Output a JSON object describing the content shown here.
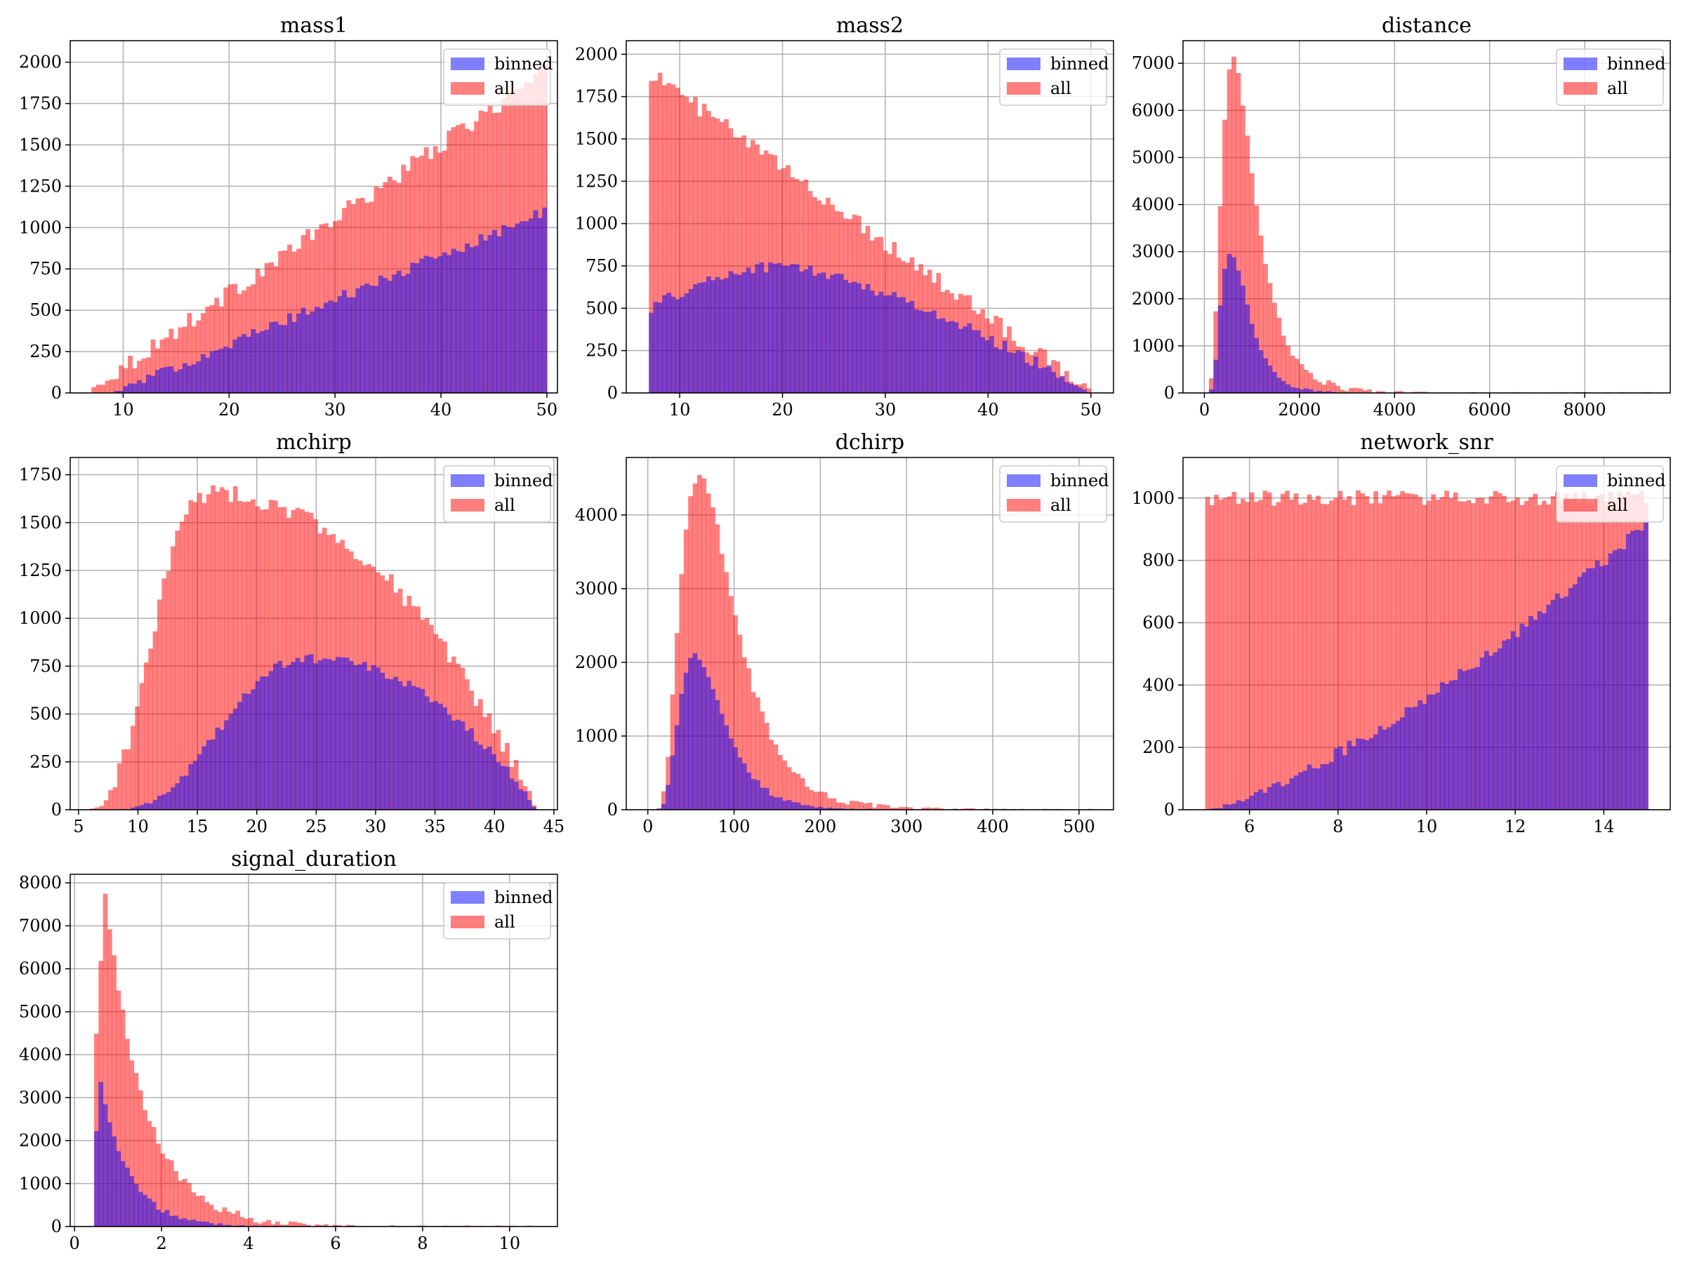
{
  "figure": {
    "colors": {
      "all": "#ff0000",
      "binned": "#0000ff",
      "alpha": 0.5
    }
  },
  "chart_data": [
    {
      "type": "bar",
      "title": "mass1",
      "legend": {
        "placement": "top-right",
        "entries": [
          "binned",
          "all"
        ]
      },
      "grid": true,
      "xlim": [
        5,
        51
      ],
      "ylim": [
        0,
        2130
      ],
      "xticks": [
        10,
        20,
        30,
        40,
        50
      ],
      "yticks": [
        0,
        250,
        500,
        750,
        1000,
        1250,
        1500,
        1750,
        2000
      ],
      "bins": {
        "start": 7.0,
        "end": 50.0,
        "count": 100
      },
      "series": [
        {
          "name": "all",
          "color": "#ff0000",
          "shape": "linear",
          "params": {
            "x0": 7.0,
            "y0": 20,
            "x1": 50.0,
            "y1": 1950,
            "noise": 55
          }
        },
        {
          "name": "binned",
          "color": "#0000ff",
          "shape": "linear",
          "params": {
            "x0": 9.0,
            "y0": 0,
            "x1": 50.0,
            "y1": 1100,
            "noise": 35
          }
        }
      ]
    },
    {
      "type": "bar",
      "title": "mass2",
      "legend": {
        "placement": "top-right",
        "entries": [
          "binned",
          "all"
        ]
      },
      "grid": true,
      "xlim": [
        4.8,
        52.2
      ],
      "ylim": [
        0,
        2080
      ],
      "xticks": [
        10,
        20,
        30,
        40,
        50
      ],
      "yticks": [
        0,
        250,
        500,
        750,
        1000,
        1250,
        1500,
        1750,
        2000
      ],
      "bins": {
        "start": 7.0,
        "end": 50.0,
        "count": 100
      },
      "series": [
        {
          "name": "all",
          "color": "#ff0000",
          "shape": "linear",
          "params": {
            "x0": 7.0,
            "y0": 1900,
            "x1": 50.0,
            "y1": 10,
            "noise": 50
          }
        },
        {
          "name": "binned",
          "color": "#0000ff",
          "shape": "plateau",
          "params": {
            "x0": 7.0,
            "y0": 500,
            "xpk": 20.0,
            "ypk": 750,
            "x1": 50.0,
            "y1": 0,
            "noise": 35
          }
        }
      ]
    },
    {
      "type": "bar",
      "title": "distance",
      "legend": {
        "placement": "top-right",
        "entries": [
          "binned",
          "all"
        ]
      },
      "grid": true,
      "xlim": [
        -450,
        9800
      ],
      "ylim": [
        0,
        7480
      ],
      "xticks": [
        0,
        2000,
        4000,
        6000,
        8000
      ],
      "yticks": [
        0,
        1000,
        2000,
        3000,
        4000,
        5000,
        6000,
        7000
      ],
      "bins": {
        "start": 0,
        "end": 9500,
        "count": 100
      },
      "series": [
        {
          "name": "all",
          "color": "#ff0000",
          "shape": "lognormal",
          "params": {
            "peak": 7100,
            "mode": 600,
            "sigma": 0.55,
            "noise": 90
          }
        },
        {
          "name": "binned",
          "color": "#0000ff",
          "shape": "lognormal",
          "params": {
            "peak": 3000,
            "mode": 550,
            "sigma": 0.5,
            "noise": 50
          }
        }
      ]
    },
    {
      "type": "bar",
      "title": "mchirp",
      "legend": {
        "placement": "top-right",
        "entries": [
          "binned",
          "all"
        ]
      },
      "grid": true,
      "xlim": [
        4.3,
        45.3
      ],
      "ylim": [
        0,
        1840
      ],
      "xticks": [
        5,
        10,
        15,
        20,
        25,
        30,
        35,
        40,
        45
      ],
      "yticks": [
        0,
        250,
        500,
        750,
        1000,
        1250,
        1500,
        1750
      ],
      "bins": {
        "start": 6.0,
        "end": 43.5,
        "count": 100
      },
      "series": [
        {
          "name": "all",
          "color": "#ff0000",
          "shape": "hump",
          "params": {
            "x0": 6.0,
            "x1": 43.5,
            "xpk": 15.5,
            "ypk": 1650,
            "noise": 50
          }
        },
        {
          "name": "binned",
          "color": "#0000ff",
          "shape": "hump",
          "params": {
            "x0": 8.5,
            "x1": 43.5,
            "xpk": 24.0,
            "ypk": 790,
            "noise": 25
          }
        }
      ]
    },
    {
      "type": "bar",
      "title": "dchirp",
      "legend": {
        "placement": "top-right",
        "entries": [
          "binned",
          "all"
        ]
      },
      "grid": true,
      "xlim": [
        -25,
        540
      ],
      "ylim": [
        0,
        4780
      ],
      "xticks": [
        0,
        100,
        200,
        300,
        400,
        500
      ],
      "yticks": [
        0,
        1000,
        2000,
        3000,
        4000
      ],
      "bins": {
        "start": 0,
        "end": 520,
        "count": 100
      },
      "series": [
        {
          "name": "all",
          "color": "#ff0000",
          "shape": "lognormal",
          "params": {
            "peak": 4550,
            "mode": 60,
            "sigma": 0.5,
            "noise": 60
          }
        },
        {
          "name": "binned",
          "color": "#0000ff",
          "shape": "lognormal",
          "params": {
            "peak": 2100,
            "mode": 55,
            "sigma": 0.45,
            "noise": 35
          }
        }
      ]
    },
    {
      "type": "bar",
      "title": "network_snr",
      "legend": {
        "placement": "top-right",
        "entries": [
          "binned",
          "all"
        ]
      },
      "grid": true,
      "xlim": [
        4.5,
        15.5
      ],
      "ylim": [
        0,
        1130
      ],
      "xticks": [
        6,
        8,
        10,
        12,
        14
      ],
      "yticks": [
        0,
        200,
        400,
        600,
        800,
        1000
      ],
      "bins": {
        "start": 5.0,
        "end": 15.0,
        "count": 100
      },
      "series": [
        {
          "name": "all",
          "color": "#ff0000",
          "shape": "flat",
          "params": {
            "level": 1000,
            "noise": 25
          }
        },
        {
          "name": "binned",
          "color": "#0000ff",
          "shape": "rise",
          "params": {
            "x0": 5.0,
            "x1": 15.0,
            "y1": 920,
            "noise": 20
          }
        }
      ]
    },
    {
      "type": "bar",
      "title": "signal_duration",
      "legend": {
        "placement": "top-right",
        "entries": [
          "binned",
          "all"
        ]
      },
      "grid": true,
      "xlim": [
        -0.1,
        11.1
      ],
      "ylim": [
        0,
        8200
      ],
      "xticks": [
        0,
        2,
        4,
        6,
        8,
        10
      ],
      "yticks": [
        0,
        1000,
        2000,
        3000,
        4000,
        5000,
        6000,
        7000,
        8000
      ],
      "bins": {
        "start": 0.45,
        "end": 10.6,
        "count": 100
      },
      "series": [
        {
          "name": "all",
          "color": "#ff0000",
          "shape": "decay",
          "params": {
            "x0": 0.45,
            "xpk": 0.7,
            "ypk": 7800,
            "scale": 0.9,
            "noise": 120
          }
        },
        {
          "name": "binned",
          "color": "#0000ff",
          "shape": "decay",
          "params": {
            "x0": 0.45,
            "xpk": 0.6,
            "ypk": 3400,
            "scale": 0.65,
            "noise": 60
          }
        }
      ]
    }
  ]
}
